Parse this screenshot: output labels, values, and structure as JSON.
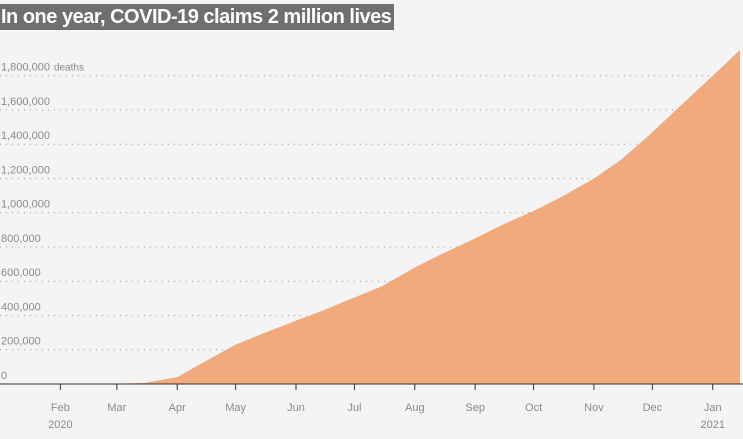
{
  "title": "In one year, COVID-19 claims 2 million lives",
  "chart_data": {
    "type": "area",
    "title": "In one year, COVID-19 claims 2 million lives",
    "xlabel": "",
    "ylabel": "",
    "y_unit": "deaths",
    "ylim": [
      0,
      1950000
    ],
    "grid": true,
    "x_range": [
      "2020-01-01",
      "2021-01-15"
    ],
    "y_ticks": [
      {
        "value": 0,
        "label": "0"
      },
      {
        "value": 200000,
        "label": "200,000"
      },
      {
        "value": 400000,
        "label": "400,000"
      },
      {
        "value": 600000,
        "label": "600,000"
      },
      {
        "value": 800000,
        "label": "800,000"
      },
      {
        "value": 1000000,
        "label": "1,000,000"
      },
      {
        "value": 1200000,
        "label": "1,200,000"
      },
      {
        "value": 1400000,
        "label": "1,400,000"
      },
      {
        "value": 1600000,
        "label": "1,600,000"
      },
      {
        "value": 1800000,
        "label": "1,800,000"
      }
    ],
    "x_ticks": [
      {
        "date": "2020-02-01",
        "label": "Feb",
        "year": "2020"
      },
      {
        "date": "2020-03-01",
        "label": "Mar",
        "year": ""
      },
      {
        "date": "2020-04-01",
        "label": "Apr",
        "year": ""
      },
      {
        "date": "2020-05-01",
        "label": "May",
        "year": ""
      },
      {
        "date": "2020-06-01",
        "label": "Jun",
        "year": ""
      },
      {
        "date": "2020-07-01",
        "label": "Jul",
        "year": ""
      },
      {
        "date": "2020-08-01",
        "label": "Aug",
        "year": ""
      },
      {
        "date": "2020-09-01",
        "label": "Sep",
        "year": ""
      },
      {
        "date": "2020-10-01",
        "label": "Oct",
        "year": ""
      },
      {
        "date": "2020-11-01",
        "label": "Nov",
        "year": ""
      },
      {
        "date": "2020-12-01",
        "label": "Dec",
        "year": ""
      },
      {
        "date": "2021-01-01",
        "label": "Jan",
        "year": "2021"
      }
    ],
    "series": [
      {
        "color": "#f2a97b",
        "points": [
          {
            "x": "2020-01-01",
            "y": 0
          },
          {
            "x": "2020-02-01",
            "y": 0
          },
          {
            "x": "2020-03-01",
            "y": 2000
          },
          {
            "x": "2020-03-15",
            "y": 6000
          },
          {
            "x": "2020-04-01",
            "y": 40000
          },
          {
            "x": "2020-04-15",
            "y": 130000
          },
          {
            "x": "2020-05-01",
            "y": 230000
          },
          {
            "x": "2020-05-15",
            "y": 295000
          },
          {
            "x": "2020-06-01",
            "y": 370000
          },
          {
            "x": "2020-06-15",
            "y": 430000
          },
          {
            "x": "2020-07-01",
            "y": 505000
          },
          {
            "x": "2020-07-15",
            "y": 570000
          },
          {
            "x": "2020-08-01",
            "y": 680000
          },
          {
            "x": "2020-08-15",
            "y": 760000
          },
          {
            "x": "2020-09-01",
            "y": 850000
          },
          {
            "x": "2020-09-15",
            "y": 930000
          },
          {
            "x": "2020-10-01",
            "y": 1010000
          },
          {
            "x": "2020-10-15",
            "y": 1090000
          },
          {
            "x": "2020-11-01",
            "y": 1200000
          },
          {
            "x": "2020-11-15",
            "y": 1310000
          },
          {
            "x": "2020-12-01",
            "y": 1470000
          },
          {
            "x": "2020-12-15",
            "y": 1620000
          },
          {
            "x": "2021-01-01",
            "y": 1800000
          },
          {
            "x": "2021-01-15",
            "y": 1950000
          }
        ]
      }
    ]
  }
}
